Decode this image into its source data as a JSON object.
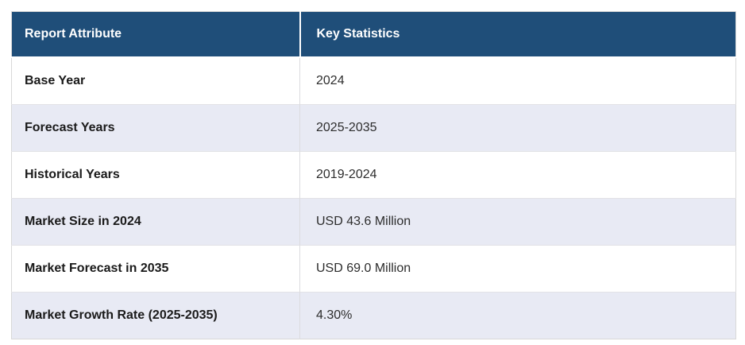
{
  "colors": {
    "header_bg": "#1f4e79",
    "header_text": "#ffffff",
    "alt_row_bg": "#e8eaf4",
    "row_bg": "#ffffff",
    "border": "#d8d8d8",
    "body_text": "#1a1a1a"
  },
  "table": {
    "columns": [
      "Report Attribute",
      "Key Statistics"
    ],
    "rows": [
      {
        "attribute": "Base Year",
        "value": "2024"
      },
      {
        "attribute": "Forecast Years",
        "value": "2025-2035"
      },
      {
        "attribute": "Historical Years",
        "value": "2019-2024"
      },
      {
        "attribute": "Market Size in 2024",
        "value": "USD 43.6 Million"
      },
      {
        "attribute": "Market Forecast in 2035",
        "value": "USD 69.0 Million"
      },
      {
        "attribute": "Market Growth Rate (2025-2035)",
        "value": "4.30%"
      }
    ]
  }
}
